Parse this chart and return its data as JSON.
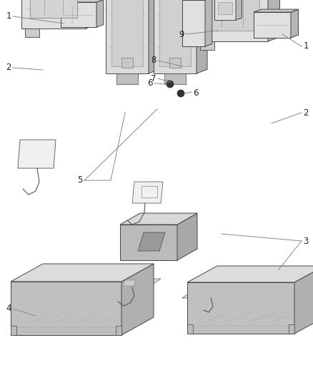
{
  "background_color": "#ffffff",
  "line_color": "#555555",
  "label_line_color": "#888888",
  "text_color": "#222222",
  "font_size": 8.5,
  "edge_color": "#444444",
  "face_light": "#e8e8e8",
  "face_mid": "#d0d0d0",
  "face_dark": "#b8b8b8",
  "face_side": "#c0c0c0"
}
